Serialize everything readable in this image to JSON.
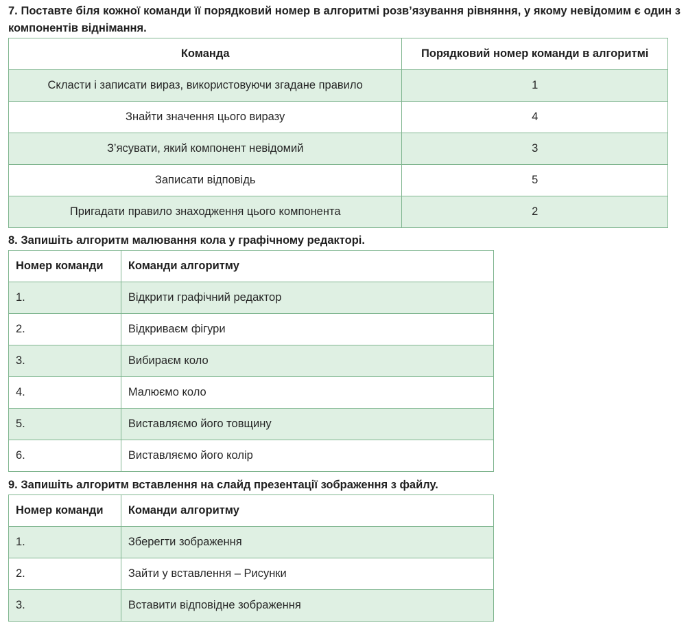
{
  "task7": {
    "title": "7. Поставте біля кожної команди її порядковий номер в алгоритмі розв’язування рівняння, у якому невідомим є один з компонентів віднімання.",
    "headers": {
      "command": "Команда",
      "order": "Порядковий номер команди в алгоритмі"
    },
    "rows": [
      {
        "command": "Скласти і записати вираз, використовуючи згадане правило",
        "order": "1"
      },
      {
        "command": "Знайти значення цього виразу",
        "order": "4"
      },
      {
        "command": "З’ясувати, який компонент невідомий",
        "order": "3"
      },
      {
        "command": "Записати відповідь",
        "order": "5"
      },
      {
        "command": "Пригадати правило знаходження цього компонента",
        "order": "2"
      }
    ]
  },
  "task8": {
    "title": "8. Запишіть алгоритм малювання кола у графічному редакторі.",
    "headers": {
      "number": "Номер команди",
      "commands": "Команди алгоритму"
    },
    "rows": [
      {
        "number": "1.",
        "command": "Відкрити графічний редактор"
      },
      {
        "number": "2.",
        "command": "Відкриваєм фігури"
      },
      {
        "number": "3.",
        "command": "Вибираєм коло"
      },
      {
        "number": "4.",
        "command": "Малюємо коло"
      },
      {
        "number": "5.",
        "command": "Виставляємо його товщину"
      },
      {
        "number": "6.",
        "command": "Виставляємо його колір"
      }
    ]
  },
  "task9": {
    "title": "9. Запишіть алгоритм вставлення на слайд презентації зображення з файлу.",
    "headers": {
      "number": "Номер команди",
      "commands": "Команди алгоритму"
    },
    "rows": [
      {
        "number": "1.",
        "command": "Зберегти зображення"
      },
      {
        "number": "2.",
        "command": "Зайти у вставлення – Рисунки"
      },
      {
        "number": "3.",
        "command": "Вставити відповідне зображення"
      }
    ]
  },
  "colors": {
    "row_shade": "#dff0e3",
    "border": "#7fb58f"
  }
}
